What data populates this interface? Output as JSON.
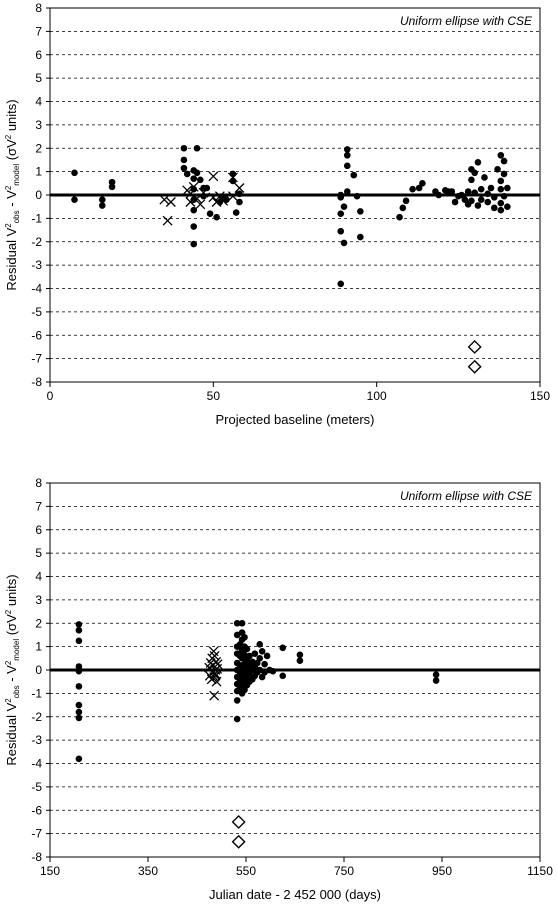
{
  "chart_data": [
    {
      "type": "scatter",
      "annotation": "Uniform ellipse with CSE",
      "xlabel": "Projected baseline (meters)",
      "ylabel": {
        "prefix": "Residual V",
        "sup1": "2",
        "sub1": "obs",
        "mid": " - V",
        "sup2": "2",
        "sub2": "model",
        "mid2": " (σV",
        "sup3": "2",
        "suffix": " units)"
      },
      "xlim": [
        0,
        150
      ],
      "ylim": [
        -8,
        8
      ],
      "xticks": [
        0,
        50,
        100,
        150
      ],
      "yticks": [
        8,
        7,
        6,
        5,
        4,
        3,
        2,
        1,
        0,
        -1,
        -2,
        -3,
        -4,
        -5,
        -6,
        -7,
        -8
      ],
      "grid": "horizontal dashed",
      "series": [
        {
          "marker": "dot",
          "points": [
            [
              7.5,
              0.95
            ],
            [
              7.5,
              -0.2
            ],
            [
              16,
              -0.2
            ],
            [
              16,
              -0.45
            ],
            [
              19,
              0.55
            ],
            [
              19,
              0.35
            ],
            [
              41,
              2.0
            ],
            [
              41,
              1.5
            ],
            [
              41,
              1.15
            ],
            [
              42,
              0.9
            ],
            [
              44,
              1.05
            ],
            [
              44,
              0.7
            ],
            [
              44,
              0.25
            ],
            [
              44,
              -0.2
            ],
            [
              44,
              -0.65
            ],
            [
              44,
              -1.35
            ],
            [
              44,
              -2.1
            ],
            [
              45,
              2.0
            ],
            [
              45,
              0.95
            ],
            [
              46,
              0.65
            ],
            [
              47,
              0.3
            ],
            [
              47,
              -0.05
            ],
            [
              48,
              0.3
            ],
            [
              49,
              -0.8
            ],
            [
              51,
              -0.95
            ],
            [
              52,
              -0.3
            ],
            [
              53,
              -0.15
            ],
            [
              54,
              -0.2
            ],
            [
              56,
              0.9
            ],
            [
              56,
              0.6
            ],
            [
              57,
              -0.75
            ],
            [
              58,
              0.05
            ],
            [
              58,
              -0.3
            ],
            [
              89,
              0.0
            ],
            [
              89,
              -0.1
            ],
            [
              89,
              -0.8
            ],
            [
              89,
              -1.55
            ],
            [
              89,
              -3.8
            ],
            [
              90,
              -0.5
            ],
            [
              90,
              -2.05
            ],
            [
              91,
              1.95
            ],
            [
              91,
              1.7
            ],
            [
              91,
              1.25
            ],
            [
              91,
              0.15
            ],
            [
              93,
              0.85
            ],
            [
              94,
              -0.05
            ],
            [
              95,
              -1.8
            ],
            [
              95,
              -0.7
            ],
            [
              107,
              -0.95
            ],
            [
              108,
              -0.55
            ],
            [
              109,
              -0.25
            ],
            [
              111,
              0.25
            ],
            [
              113,
              0.3
            ],
            [
              114,
              0.5
            ],
            [
              118,
              0.15
            ],
            [
              119,
              0.0
            ],
            [
              121,
              0.2
            ],
            [
              122,
              0.15
            ],
            [
              123,
              0.15
            ],
            [
              124,
              -0.3
            ],
            [
              125,
              -0.05
            ],
            [
              126,
              0.0
            ],
            [
              127,
              -0.2
            ],
            [
              128,
              0.15
            ],
            [
              128,
              -0.4
            ],
            [
              129,
              1.1
            ],
            [
              129,
              0.65
            ],
            [
              129,
              -0.25
            ],
            [
              130,
              0.95
            ],
            [
              130,
              0.1
            ],
            [
              131,
              1.4
            ],
            [
              131,
              -0.45
            ],
            [
              132,
              0.25
            ],
            [
              132,
              -0.2
            ],
            [
              133,
              0.75
            ],
            [
              134,
              0.05
            ],
            [
              134,
              -0.3
            ],
            [
              135,
              0.3
            ],
            [
              136,
              -0.1
            ],
            [
              136,
              -0.55
            ],
            [
              137,
              1.1
            ],
            [
              138,
              1.7
            ],
            [
              138,
              0.6
            ],
            [
              138,
              0.25
            ],
            [
              138,
              -0.35
            ],
            [
              138,
              -0.65
            ],
            [
              139,
              1.45
            ],
            [
              139,
              0.9
            ],
            [
              139,
              -0.05
            ],
            [
              140,
              0.3
            ],
            [
              140,
              -0.5
            ]
          ]
        },
        {
          "marker": "cross",
          "points": [
            [
              35,
              -0.2
            ],
            [
              36,
              -1.1
            ],
            [
              37,
              -0.3
            ],
            [
              42,
              0.2
            ],
            [
              43,
              0.05
            ],
            [
              43,
              -0.3
            ],
            [
              44,
              0.35
            ],
            [
              45,
              -0.15
            ],
            [
              46,
              -0.4
            ],
            [
              47,
              0.1
            ],
            [
              50,
              0.8
            ],
            [
              50,
              -0.1
            ],
            [
              51,
              -0.3
            ],
            [
              52,
              -0.05
            ],
            [
              53,
              -0.25
            ],
            [
              56,
              0.75
            ],
            [
              56,
              -0.05
            ],
            [
              58,
              0.3
            ]
          ]
        },
        {
          "marker": "diamond",
          "points": [
            [
              130,
              -6.5
            ],
            [
              130,
              -7.35
            ]
          ]
        }
      ]
    },
    {
      "type": "scatter",
      "annotation": "Uniform ellipse with CSE",
      "xlabel": "Julian date - 2 452 000 (days)",
      "ylabel": {
        "prefix": "Residual V",
        "sup1": "2",
        "sub1": "obs",
        "mid": " - V",
        "sup2": "2",
        "sub2": "model",
        "mid2": " (σV",
        "sup3": "2",
        "suffix": " units)"
      },
      "xlim": [
        150,
        1150
      ],
      "ylim": [
        -8,
        8
      ],
      "xticks": [
        150,
        350,
        550,
        750,
        950,
        1150
      ],
      "yticks": [
        8,
        7,
        6,
        5,
        4,
        3,
        2,
        1,
        0,
        -1,
        -2,
        -3,
        -4,
        -5,
        -6,
        -7,
        -8
      ],
      "grid": "horizontal dashed",
      "series": [
        {
          "marker": "dot",
          "points": [
            [
              209,
              1.95
            ],
            [
              209,
              1.7
            ],
            [
              209,
              1.25
            ],
            [
              209,
              0.15
            ],
            [
              209,
              0.0
            ],
            [
              209,
              -0.05
            ],
            [
              209,
              -0.7
            ],
            [
              209,
              -1.5
            ],
            [
              209,
              -1.8
            ],
            [
              209,
              -2.05
            ],
            [
              209,
              -3.8
            ],
            [
              532,
              2.0
            ],
            [
              532,
              1.5
            ],
            [
              532,
              1.0
            ],
            [
              532,
              0.7
            ],
            [
              532,
              0.3
            ],
            [
              532,
              0.0
            ],
            [
              532,
              -0.3
            ],
            [
              532,
              -0.6
            ],
            [
              532,
              -0.9
            ],
            [
              532,
              -1.3
            ],
            [
              532,
              -2.1
            ],
            [
              538,
              1.1
            ],
            [
              538,
              0.6
            ],
            [
              538,
              0.2
            ],
            [
              538,
              -0.2
            ],
            [
              538,
              -0.5
            ],
            [
              538,
              -0.8
            ],
            [
              542,
              2.0
            ],
            [
              542,
              1.6
            ],
            [
              542,
              1.3
            ],
            [
              542,
              0.85
            ],
            [
              542,
              0.5
            ],
            [
              542,
              0.1
            ],
            [
              542,
              -0.1
            ],
            [
              542,
              -0.4
            ],
            [
              542,
              -0.75
            ],
            [
              542,
              -1.0
            ],
            [
              547,
              1.4
            ],
            [
              547,
              1.0
            ],
            [
              547,
              0.65
            ],
            [
              547,
              0.25
            ],
            [
              547,
              -0.15
            ],
            [
              547,
              -0.55
            ],
            [
              547,
              -0.85
            ],
            [
              552,
              0.9
            ],
            [
              552,
              0.4
            ],
            [
              552,
              0.0
            ],
            [
              552,
              -0.3
            ],
            [
              552,
              -0.65
            ],
            [
              557,
              0.6
            ],
            [
              557,
              0.2
            ],
            [
              557,
              -0.2
            ],
            [
              557,
              -0.5
            ],
            [
              563,
              0.35
            ],
            [
              563,
              0.0
            ],
            [
              563,
              -0.4
            ],
            [
              568,
              0.7
            ],
            [
              568,
              0.15
            ],
            [
              568,
              -0.25
            ],
            [
              573,
              0.3
            ],
            [
              573,
              -0.1
            ],
            [
              578,
              1.1
            ],
            [
              578,
              0.5
            ],
            [
              578,
              0.0
            ],
            [
              583,
              0.8
            ],
            [
              583,
              -0.3
            ],
            [
              588,
              0.25
            ],
            [
              588,
              -0.1
            ],
            [
              593,
              0.6
            ],
            [
              598,
              0.0
            ],
            [
              605,
              -0.05
            ],
            [
              625,
              0.95
            ],
            [
              625,
              -0.25
            ],
            [
              660,
              0.65
            ],
            [
              660,
              0.4
            ],
            [
              938,
              -0.2
            ],
            [
              938,
              -0.45
            ]
          ]
        },
        {
          "marker": "cross",
          "points": [
            [
              475,
              0.1
            ],
            [
              476,
              -0.25
            ],
            [
              478,
              0.3
            ],
            [
              480,
              -0.4
            ],
            [
              481,
              0.5
            ],
            [
              482,
              -0.1
            ],
            [
              483,
              0.2
            ],
            [
              484,
              0.8
            ],
            [
              485,
              -0.3
            ],
            [
              486,
              0.6
            ],
            [
              487,
              -0.15
            ],
            [
              488,
              0.0
            ],
            [
              489,
              0.35
            ],
            [
              490,
              -0.5
            ],
            [
              492,
              0.25
            ],
            [
              485,
              -1.1
            ],
            [
              488,
              -0.25
            ],
            [
              491,
              0.05
            ]
          ]
        },
        {
          "marker": "diamond",
          "points": [
            [
              535,
              -6.5
            ],
            [
              535,
              -7.35
            ]
          ]
        }
      ]
    }
  ]
}
